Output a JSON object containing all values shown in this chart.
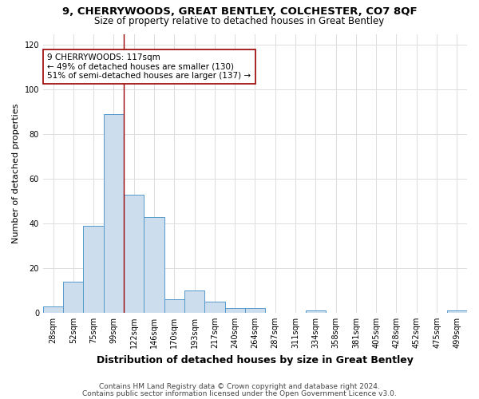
{
  "title_line1": "9, CHERRYWOODS, GREAT BENTLEY, COLCHESTER, CO7 8QF",
  "title_line2": "Size of property relative to detached houses in Great Bentley",
  "xlabel": "Distribution of detached houses by size in Great Bentley",
  "ylabel": "Number of detached properties",
  "categories": [
    "28sqm",
    "52sqm",
    "75sqm",
    "99sqm",
    "122sqm",
    "146sqm",
    "170sqm",
    "193sqm",
    "217sqm",
    "240sqm",
    "264sqm",
    "287sqm",
    "311sqm",
    "334sqm",
    "358sqm",
    "381sqm",
    "405sqm",
    "428sqm",
    "452sqm",
    "475sqm",
    "499sqm"
  ],
  "values": [
    3,
    14,
    39,
    89,
    53,
    43,
    6,
    10,
    5,
    2,
    2,
    0,
    0,
    1,
    0,
    0,
    0,
    0,
    0,
    0,
    1
  ],
  "bar_color": "#ccdded",
  "bar_edge_color": "#5599cc",
  "vline_color": "#990000",
  "annotation_text": "9 CHERRYWOODS: 117sqm\n← 49% of detached houses are smaller (130)\n51% of semi-detached houses are larger (137) →",
  "annotation_box_color": "white",
  "annotation_box_edge_color": "#990000",
  "ylim": [
    0,
    125
  ],
  "yticks": [
    0,
    20,
    40,
    60,
    80,
    100,
    120
  ],
  "footer_line1": "Contains HM Land Registry data © Crown copyright and database right 2024.",
  "footer_line2": "Contains public sector information licensed under the Open Government Licence v3.0.",
  "bg_color": "#ffffff",
  "plot_bg_color": "#ffffff",
  "title1_fontsize": 9.5,
  "title2_fontsize": 8.5,
  "tick_fontsize": 7,
  "ylabel_fontsize": 8,
  "xlabel_fontsize": 9,
  "footer_fontsize": 6.5,
  "annotation_fontsize": 7.5,
  "grid_color": "#dddddd"
}
